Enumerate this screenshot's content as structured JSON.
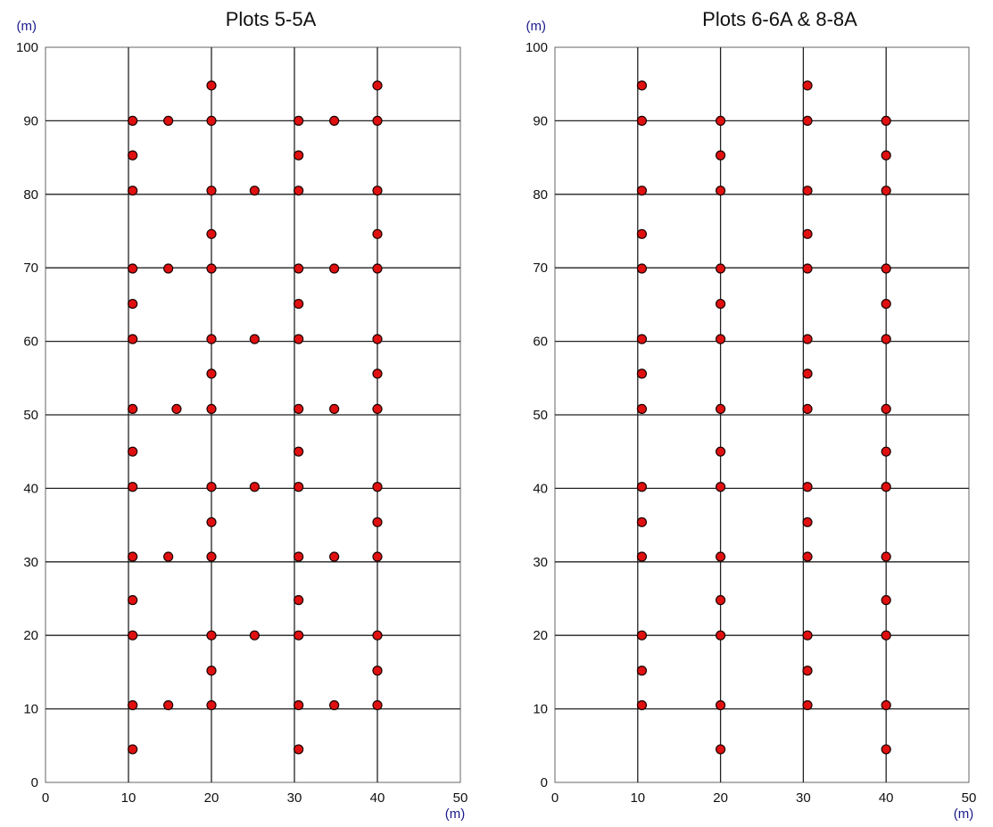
{
  "chart_data": [
    {
      "type": "scatter",
      "title": "Plots 5-5A",
      "x_unit": "(m)",
      "y_unit": "(m)",
      "xlim": [
        0,
        50
      ],
      "ylim": [
        0,
        100
      ],
      "x_ticks": [
        0,
        10,
        20,
        30,
        40,
        50
      ],
      "y_ticks": [
        0,
        10,
        20,
        30,
        40,
        50,
        60,
        70,
        80,
        90,
        100
      ],
      "grid_x": [
        10,
        20,
        30,
        40
      ],
      "grid_y": [
        10,
        20,
        30,
        40,
        50,
        60,
        70,
        80,
        90
      ],
      "points": [
        [
          10.5,
          4.5
        ],
        [
          30.5,
          4.5
        ],
        [
          10.5,
          10.5
        ],
        [
          14.8,
          10.5
        ],
        [
          20,
          10.5
        ],
        [
          30.5,
          10.5
        ],
        [
          34.8,
          10.5
        ],
        [
          40,
          10.5
        ],
        [
          20,
          15.2
        ],
        [
          40,
          15.2
        ],
        [
          10.5,
          20
        ],
        [
          20,
          20
        ],
        [
          25.2,
          20
        ],
        [
          30.5,
          20
        ],
        [
          40,
          20
        ],
        [
          10.5,
          24.8
        ],
        [
          30.5,
          24.8
        ],
        [
          10.5,
          30.7
        ],
        [
          14.8,
          30.7
        ],
        [
          20,
          30.7
        ],
        [
          30.5,
          30.7
        ],
        [
          34.8,
          30.7
        ],
        [
          40,
          30.7
        ],
        [
          20,
          35.4
        ],
        [
          40,
          35.4
        ],
        [
          10.5,
          40.2
        ],
        [
          20,
          40.2
        ],
        [
          25.2,
          40.2
        ],
        [
          30.5,
          40.2
        ],
        [
          40,
          40.2
        ],
        [
          10.5,
          45
        ],
        [
          30.5,
          45
        ],
        [
          10.5,
          50.8
        ],
        [
          15.8,
          50.8
        ],
        [
          20,
          50.8
        ],
        [
          30.5,
          50.8
        ],
        [
          34.8,
          50.8
        ],
        [
          40,
          50.8
        ],
        [
          20,
          55.6
        ],
        [
          40,
          55.6
        ],
        [
          10.5,
          60.3
        ],
        [
          20,
          60.3
        ],
        [
          25.2,
          60.3
        ],
        [
          30.5,
          60.3
        ],
        [
          40,
          60.3
        ],
        [
          10.5,
          65.1
        ],
        [
          30.5,
          65.1
        ],
        [
          10.5,
          69.9
        ],
        [
          14.8,
          69.9
        ],
        [
          20,
          69.9
        ],
        [
          30.5,
          69.9
        ],
        [
          34.8,
          69.9
        ],
        [
          40,
          69.9
        ],
        [
          20,
          74.6
        ],
        [
          40,
          74.6
        ],
        [
          10.5,
          80.5
        ],
        [
          20,
          80.5
        ],
        [
          25.2,
          80.5
        ],
        [
          30.5,
          80.5
        ],
        [
          40,
          80.5
        ],
        [
          10.5,
          85.3
        ],
        [
          30.5,
          85.3
        ],
        [
          10.5,
          90
        ],
        [
          14.8,
          90
        ],
        [
          20,
          90
        ],
        [
          30.5,
          90
        ],
        [
          34.8,
          90
        ],
        [
          40,
          90
        ],
        [
          20,
          94.8
        ],
        [
          40,
          94.8
        ]
      ],
      "marker_color": "#e01010",
      "grid": true
    },
    {
      "type": "scatter",
      "title": "Plots 6-6A & 8-8A",
      "x_unit": "(m)",
      "y_unit": "(m)",
      "xlim": [
        0,
        50
      ],
      "ylim": [
        0,
        100
      ],
      "x_ticks": [
        0,
        10,
        20,
        30,
        40,
        50
      ],
      "y_ticks": [
        0,
        10,
        20,
        30,
        40,
        50,
        60,
        70,
        80,
        90,
        100
      ],
      "grid_x": [
        10,
        20,
        30,
        40
      ],
      "grid_y": [
        10,
        20,
        30,
        40,
        50,
        60,
        70,
        80,
        90
      ],
      "points": [
        [
          20,
          4.5
        ],
        [
          40,
          4.5
        ],
        [
          10.5,
          10.5
        ],
        [
          20,
          10.5
        ],
        [
          30.5,
          10.5
        ],
        [
          40,
          10.5
        ],
        [
          10.5,
          15.2
        ],
        [
          30.5,
          15.2
        ],
        [
          10.5,
          20
        ],
        [
          20,
          20
        ],
        [
          30.5,
          20
        ],
        [
          40,
          20
        ],
        [
          20,
          24.8
        ],
        [
          40,
          24.8
        ],
        [
          10.5,
          30.7
        ],
        [
          20,
          30.7
        ],
        [
          30.5,
          30.7
        ],
        [
          40,
          30.7
        ],
        [
          10.5,
          35.4
        ],
        [
          30.5,
          35.4
        ],
        [
          10.5,
          40.2
        ],
        [
          20,
          40.2
        ],
        [
          30.5,
          40.2
        ],
        [
          40,
          40.2
        ],
        [
          20,
          45
        ],
        [
          40,
          45
        ],
        [
          10.5,
          50.8
        ],
        [
          20,
          50.8
        ],
        [
          30.5,
          50.8
        ],
        [
          40,
          50.8
        ],
        [
          10.5,
          55.6
        ],
        [
          30.5,
          55.6
        ],
        [
          10.5,
          60.3
        ],
        [
          20,
          60.3
        ],
        [
          30.5,
          60.3
        ],
        [
          40,
          60.3
        ],
        [
          20,
          65.1
        ],
        [
          40,
          65.1
        ],
        [
          10.5,
          69.9
        ],
        [
          20,
          69.9
        ],
        [
          30.5,
          69.9
        ],
        [
          40,
          69.9
        ],
        [
          10.5,
          74.6
        ],
        [
          30.5,
          74.6
        ],
        [
          10.5,
          80.5
        ],
        [
          20,
          80.5
        ],
        [
          30.5,
          80.5
        ],
        [
          40,
          80.5
        ],
        [
          20,
          85.3
        ],
        [
          40,
          85.3
        ],
        [
          10.5,
          90
        ],
        [
          20,
          90
        ],
        [
          30.5,
          90
        ],
        [
          40,
          90
        ],
        [
          10.5,
          94.8
        ],
        [
          30.5,
          94.8
        ]
      ],
      "marker_color": "#e01010",
      "grid": true
    }
  ],
  "colors": {
    "unit_label": "#1a1a8c",
    "marker_fill": "#e01010",
    "marker_stroke": "#1a0000",
    "grid_line": "#222222",
    "frame_line": "#666666"
  }
}
